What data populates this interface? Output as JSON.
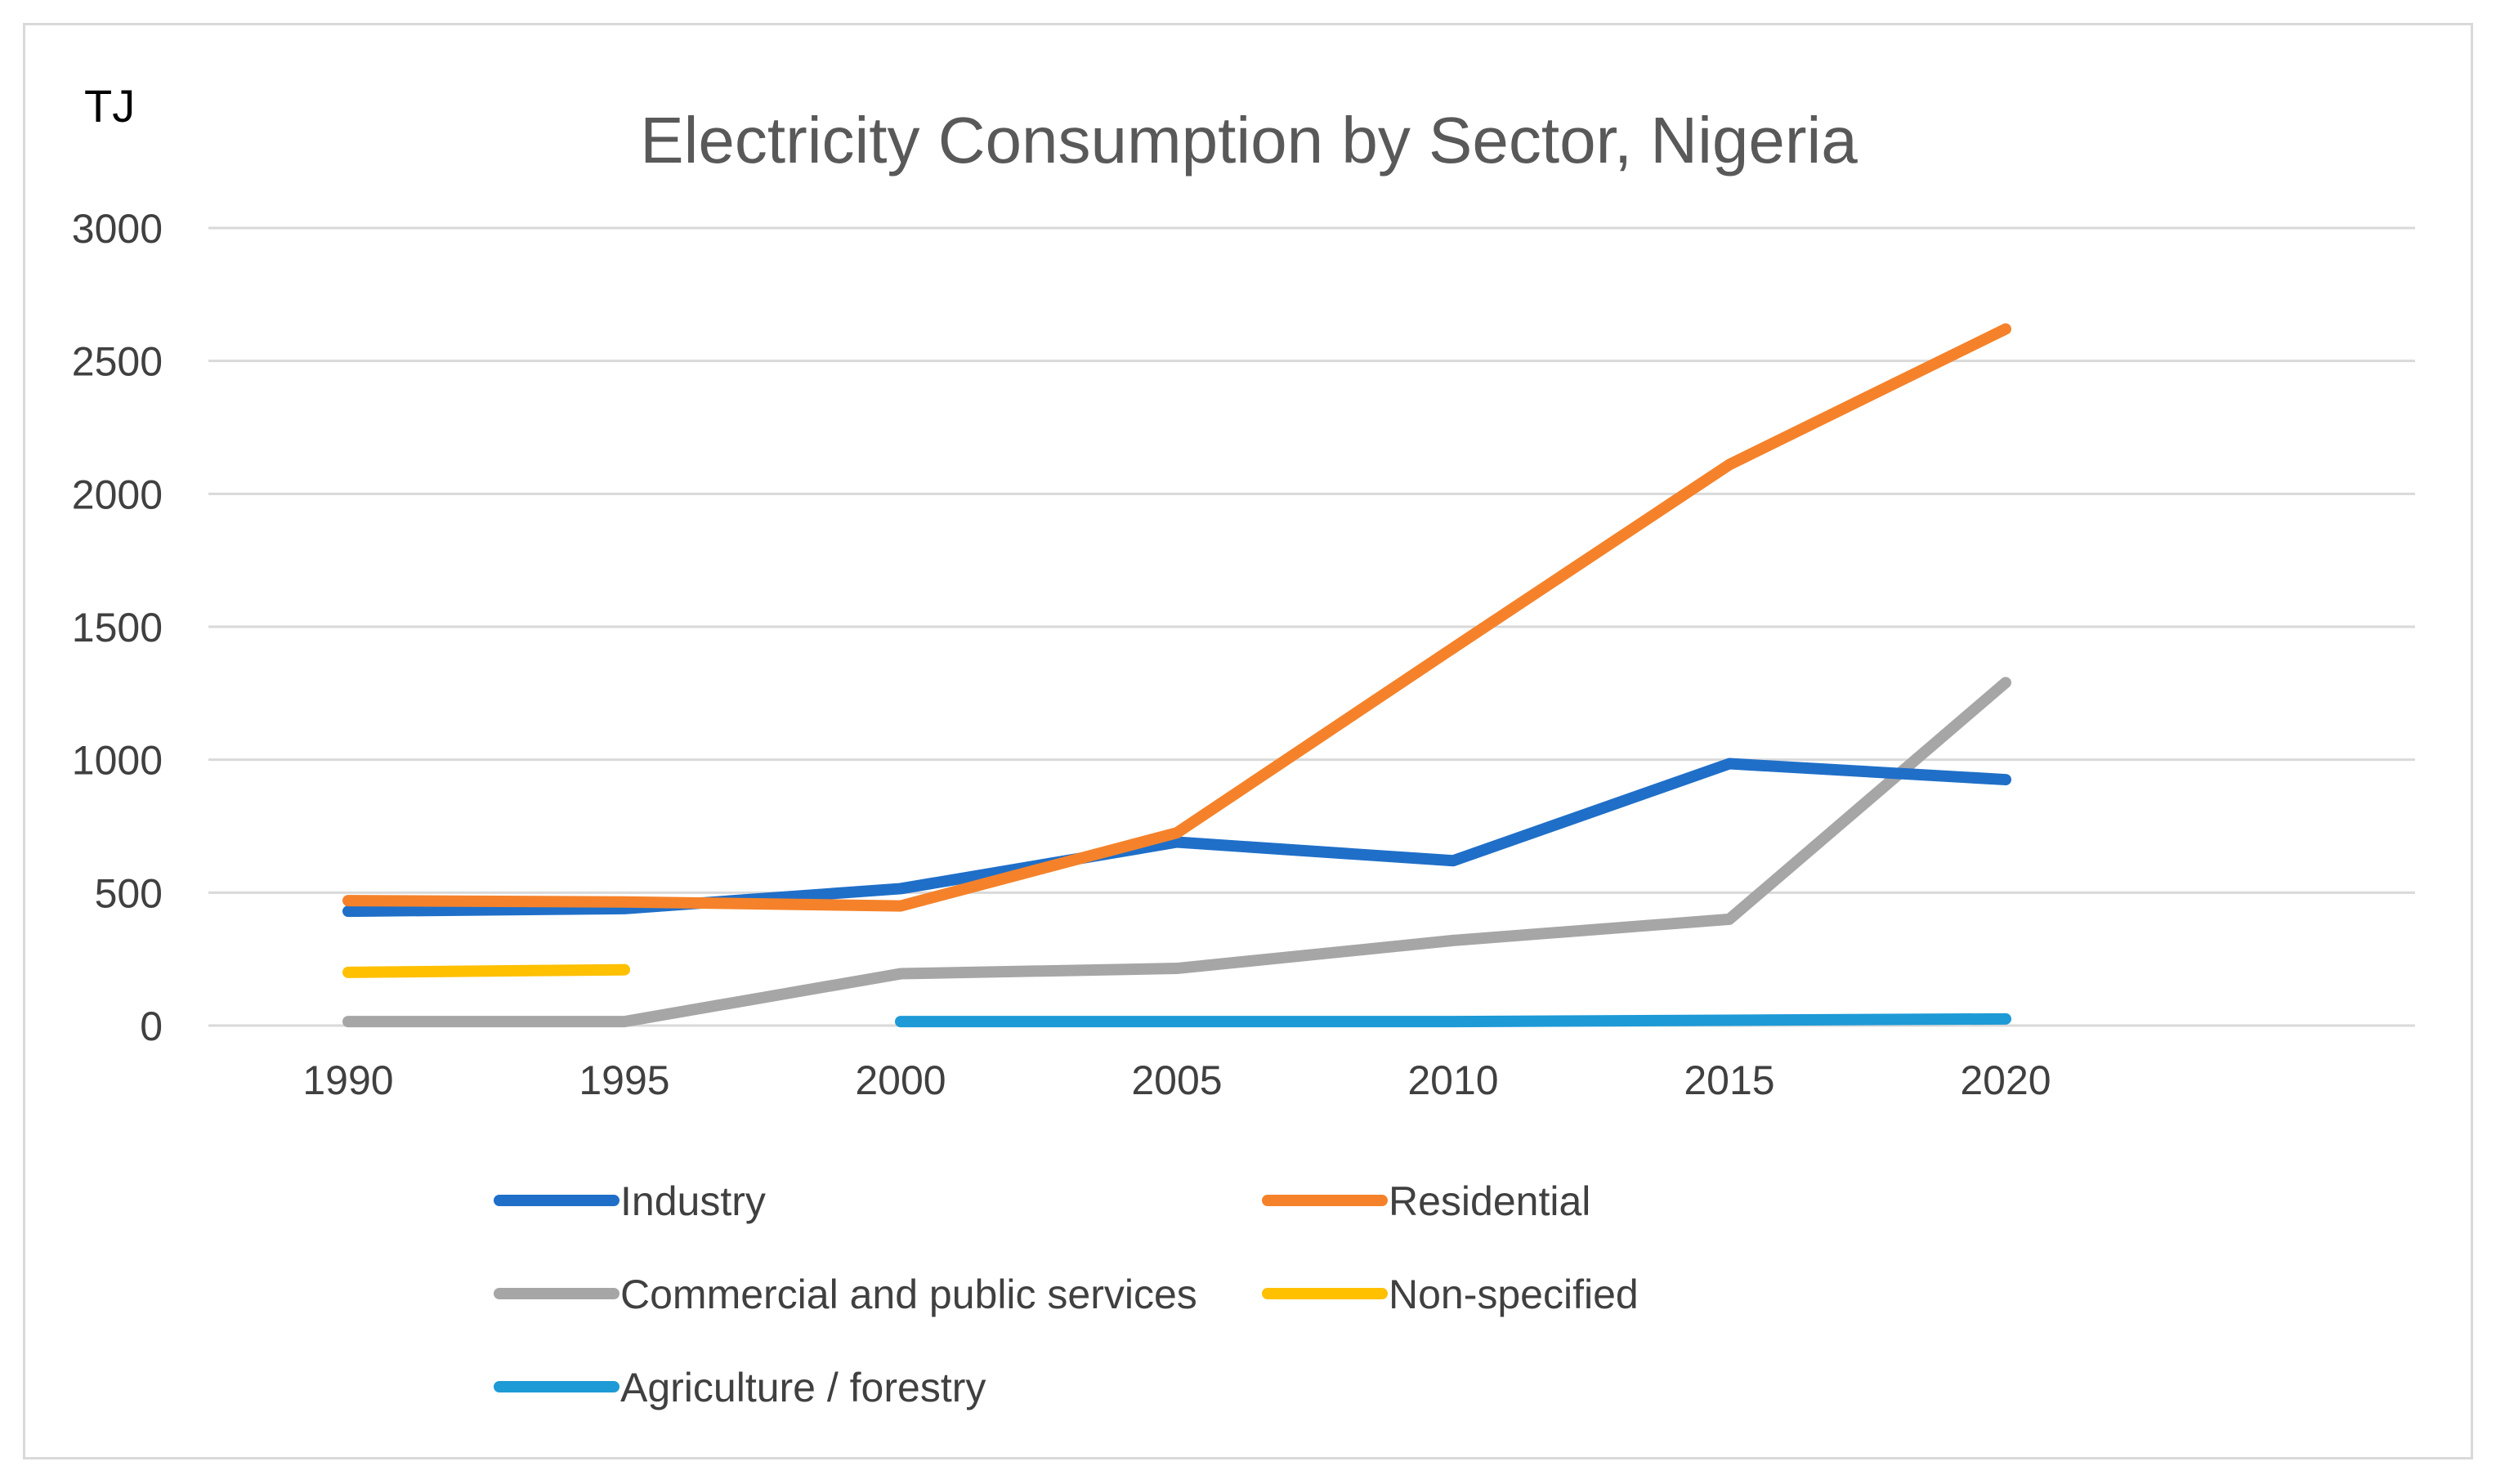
{
  "chart_data": {
    "type": "line",
    "title": "Electricity Consumption by Sector, Nigeria",
    "ylabel": "TJ",
    "xlabel": "",
    "categories": [
      "1990",
      "1995",
      "2000",
      "2005",
      "2010",
      "2015",
      "2020"
    ],
    "yticks": [
      "0",
      "500",
      "1000",
      "1500",
      "2000",
      "2500",
      "3000"
    ],
    "ylim": [
      0,
      3000
    ],
    "grid": true,
    "legend_position": "bottom",
    "series": [
      {
        "name": "Industry",
        "color": "#1f6fc8",
        "values": [
          430,
          440,
          515,
          690,
          620,
          985,
          925
        ]
      },
      {
        "name": "Residential",
        "color": "#f5822a",
        "values": [
          470,
          465,
          450,
          725,
          1420,
          2110,
          2620
        ]
      },
      {
        "name": "Commercial and public services",
        "color": "#a6a6a6",
        "values": [
          15,
          15,
          195,
          215,
          320,
          400,
          1290
        ]
      },
      {
        "name": "Non-specified",
        "color": "#ffc000",
        "values": [
          200,
          210,
          null,
          null,
          null,
          null,
          null
        ]
      },
      {
        "name": "Agriculture / forestry",
        "color": "#1e9ad6",
        "values": [
          null,
          null,
          15,
          15,
          15,
          20,
          25
        ]
      }
    ]
  }
}
